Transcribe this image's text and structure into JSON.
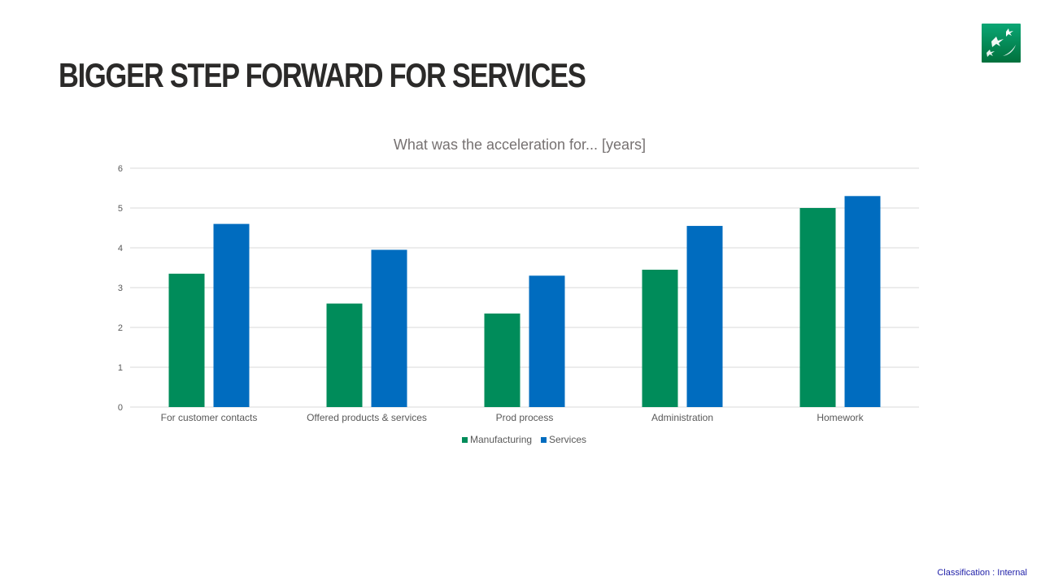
{
  "slide": {
    "title": "BIGGER STEP FORWARD FOR SERVICES",
    "classification": "Classification : Internal",
    "logo_icon": "bnp-paribas-stars-logo-icon"
  },
  "colors": {
    "manufacturing": "#008C5A",
    "services": "#006CBF",
    "gridline": "#d9d9d9",
    "logo_top": "#0a9b6e",
    "logo_bottom": "#00703c"
  },
  "chart_data": {
    "type": "bar",
    "title": "What was the acceleration for... [years]",
    "xlabel": "",
    "ylabel": "",
    "ylim": [
      0,
      6
    ],
    "yticks": [
      "0",
      "1",
      "2",
      "3",
      "4",
      "5",
      "6"
    ],
    "grid": true,
    "legend_position": "bottom",
    "categories": [
      "For customer contacts",
      "Offered products & services",
      "Prod process",
      "Administration",
      "Homework"
    ],
    "series": [
      {
        "name": "Manufacturing",
        "values": [
          3.35,
          2.6,
          2.35,
          3.45,
          5.0
        ]
      },
      {
        "name": "Services",
        "values": [
          4.6,
          3.95,
          3.3,
          4.55,
          5.3
        ]
      }
    ]
  }
}
